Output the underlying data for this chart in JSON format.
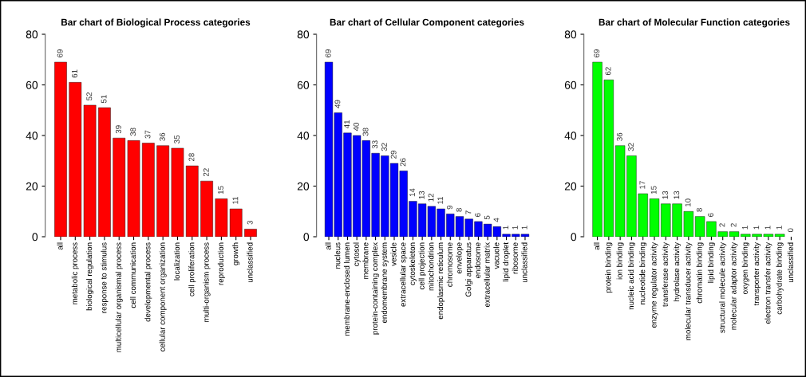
{
  "chart_data": [
    {
      "type": "bar",
      "title": "Bar chart of Biological Process categories",
      "categories": [
        "all",
        "metabolic process",
        "biological regulation",
        "response to stimulus",
        "multicellular organismal process",
        "cell communication",
        "developmental process",
        "cellular component organization",
        "localization",
        "cell proliferation",
        "multi-organism process",
        "reproduction",
        "growth",
        "unclassified"
      ],
      "values": [
        69,
        61,
        52,
        51,
        39,
        38,
        37,
        36,
        35,
        28,
        22,
        15,
        11,
        3
      ],
      "color": "#ff0000",
      "ylim": [
        0,
        80
      ],
      "yticks": [
        0,
        20,
        40,
        60,
        80
      ],
      "data_labels": true,
      "grid": false,
      "legend": false
    },
    {
      "type": "bar",
      "title": "Bar chart of Cellular Component categories",
      "categories": [
        "all",
        "nucleus",
        "membrane-enclosed lumen",
        "cytosol",
        "membrane",
        "protein-containing complex",
        "endomembrane system",
        "vesicle",
        "extracellular space",
        "cytoskeleton",
        "cell projection",
        "mitochondrion",
        "endoplasmic reticulum",
        "chromosome",
        "envelope",
        "Golgi apparatus",
        "endosome",
        "extracellular matrix",
        "vacuole",
        "lipid droplet",
        "ribosome",
        "unclassified"
      ],
      "values": [
        69,
        49,
        41,
        40,
        38,
        33,
        32,
        29,
        26,
        14,
        13,
        12,
        11,
        9,
        8,
        7,
        6,
        5,
        4,
        1,
        1,
        1
      ],
      "color": "#0000ff",
      "ylim": [
        0,
        80
      ],
      "yticks": [
        0,
        20,
        40,
        60,
        80
      ],
      "data_labels": true,
      "grid": false,
      "legend": false
    },
    {
      "type": "bar",
      "title": "Bar chart of Molecular Function categories",
      "categories": [
        "all",
        "protein binding",
        "ion binding",
        "nucleic acid binding",
        "nucleotide binding",
        "enzyme regulator activity",
        "transferase activity",
        "hydrolase activity",
        "molecular transducer activity",
        "chromatin binding",
        "lipid binding",
        "structural molecule activity",
        "molecular adaptor activity",
        "oxygen binding",
        "transporter activity",
        "electron transfer activity",
        "carbohydrate binding",
        "unclassified"
      ],
      "values": [
        69,
        62,
        36,
        32,
        17,
        15,
        13,
        13,
        10,
        8,
        6,
        2,
        2,
        1,
        1,
        1,
        1,
        0
      ],
      "color": "#00ff00",
      "ylim": [
        0,
        80
      ],
      "yticks": [
        0,
        20,
        40,
        60,
        80
      ],
      "data_labels": true,
      "grid": false,
      "legend": false
    }
  ]
}
